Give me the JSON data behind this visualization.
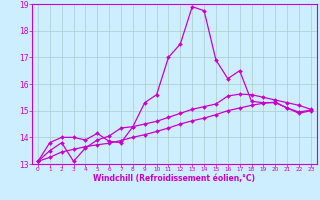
{
  "background_color": "#cceeff",
  "grid_color": "#aacccc",
  "line_color": "#cc00cc",
  "xlabel": "Windchill (Refroidissement éolien,°C)",
  "xlabel_color": "#cc00cc",
  "tick_color": "#cc00cc",
  "spine_color": "#cc00cc",
  "xlim": [
    -0.5,
    23.5
  ],
  "ylim": [
    13,
    19
  ],
  "yticks": [
    13,
    14,
    15,
    16,
    17,
    18,
    19
  ],
  "xticks": [
    0,
    1,
    2,
    3,
    4,
    5,
    6,
    7,
    8,
    9,
    10,
    11,
    12,
    13,
    14,
    15,
    16,
    17,
    18,
    19,
    20,
    21,
    22,
    23
  ],
  "lines": [
    {
      "x": [
        0,
        1,
        2,
        3,
        4,
        5,
        6,
        7,
        8,
        9,
        10,
        11,
        12,
        13,
        14,
        15,
        16,
        17,
        18,
        19,
        20,
        21,
        22,
        23
      ],
      "y": [
        13.1,
        13.8,
        14.0,
        14.0,
        13.9,
        14.15,
        13.85,
        13.8,
        14.4,
        15.3,
        15.6,
        17.0,
        17.5,
        18.9,
        18.75,
        16.9,
        16.2,
        16.5,
        15.35,
        15.3,
        15.3,
        15.1,
        14.9,
        15.0
      ]
    },
    {
      "x": [
        0,
        1,
        2,
        3,
        4,
        5,
        6,
        7,
        8,
        9,
        10,
        11,
        12,
        13,
        14,
        15,
        16,
        17,
        18,
        19,
        20,
        21,
        22,
        23
      ],
      "y": [
        13.1,
        13.5,
        13.8,
        13.1,
        13.6,
        13.9,
        14.05,
        14.35,
        14.4,
        14.5,
        14.6,
        14.75,
        14.9,
        15.05,
        15.15,
        15.25,
        15.55,
        15.62,
        15.6,
        15.5,
        15.4,
        15.3,
        15.2,
        15.05
      ]
    },
    {
      "x": [
        0,
        1,
        2,
        3,
        4,
        5,
        6,
        7,
        8,
        9,
        10,
        11,
        12,
        13,
        14,
        15,
        16,
        17,
        18,
        19,
        20,
        21,
        22,
        23
      ],
      "y": [
        13.1,
        13.25,
        13.45,
        13.55,
        13.65,
        13.72,
        13.78,
        13.88,
        14.0,
        14.1,
        14.22,
        14.35,
        14.5,
        14.62,
        14.72,
        14.85,
        15.0,
        15.1,
        15.2,
        15.28,
        15.32,
        15.1,
        14.95,
        15.02
      ]
    }
  ]
}
